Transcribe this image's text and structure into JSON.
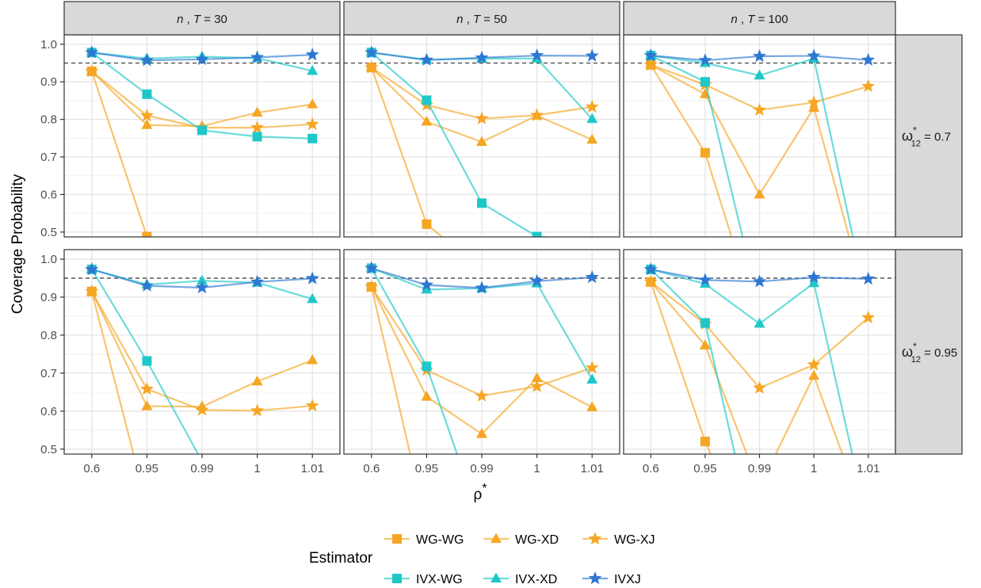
{
  "chart_data": {
    "type": "line",
    "ylabel": "Coverage Probability",
    "xlabel": "ρ*",
    "x_categories": [
      "0.6",
      "0.95",
      "0.99",
      "1",
      "1.01"
    ],
    "y_ticks": [
      "0.5",
      "0.6",
      "0.7",
      "0.8",
      "0.9",
      "1.0"
    ],
    "ylim": [
      0.487,
      1.025
    ],
    "reference_line": 0.95,
    "grid": true,
    "columns": [
      {
        "pre": "n",
        "mid": " , ",
        "var": "T",
        "post": " = 30"
      },
      {
        "pre": "n",
        "mid": " , ",
        "var": "T",
        "post": " = 50"
      },
      {
        "pre": "n",
        "mid": " , ",
        "var": "T",
        "post": " = 100"
      }
    ],
    "rows": [
      {
        "base": "ω",
        "sup": "*",
        "sub": "12",
        "value": " = 0.7"
      },
      {
        "base": "ω",
        "sup": "*",
        "sub": "12",
        "value": " = 0.95"
      }
    ],
    "legend": {
      "title": "Estimator",
      "position": "bottom",
      "entries": [
        {
          "name": "WG-WG",
          "color": "#F5A623",
          "shape": "square"
        },
        {
          "name": "WG-XD",
          "color": "#F5A623",
          "shape": "triangle"
        },
        {
          "name": "WG-XJ",
          "color": "#F5A623",
          "shape": "star"
        },
        {
          "name": "IVX-WG",
          "color": "#1FC8C8",
          "shape": "square"
        },
        {
          "name": "IVX-XD",
          "color": "#1FC8C8",
          "shape": "triangle"
        },
        {
          "name": "IVXJ",
          "color": "#2E78D2",
          "shape": "star"
        }
      ]
    },
    "panels": [
      {
        "row": 0,
        "col": 0,
        "series": {
          "WG-WG": [
            0.928,
            0.488,
            null,
            null,
            null
          ],
          "WG-XD": [
            0.928,
            0.785,
            0.782,
            0.818,
            0.84
          ],
          "WG-XJ": [
            0.928,
            0.81,
            0.778,
            0.778,
            0.787
          ],
          "IVX-WG": [
            0.978,
            0.867,
            0.771,
            0.754,
            0.749
          ],
          "IVX-XD": [
            0.978,
            0.962,
            0.967,
            0.963,
            0.929
          ],
          "IVXJ": [
            0.978,
            0.957,
            0.96,
            0.965,
            0.972
          ]
        }
      },
      {
        "row": 0,
        "col": 1,
        "series": {
          "WG-WG": [
            0.938,
            0.521,
            0.4,
            null,
            null
          ],
          "WG-XD": [
            0.938,
            0.794,
            0.74,
            0.81,
            0.746
          ],
          "WG-XJ": [
            0.938,
            0.838,
            0.802,
            0.811,
            0.833
          ],
          "IVX-WG": [
            0.978,
            0.851,
            0.577,
            0.488,
            0.477
          ],
          "IVX-XD": [
            0.978,
            0.959,
            0.962,
            0.962,
            0.801
          ],
          "IVXJ": [
            0.978,
            0.958,
            0.964,
            0.97,
            0.969
          ]
        }
      },
      {
        "row": 0,
        "col": 2,
        "series": {
          "WG-WG": [
            0.945,
            0.711,
            0.25,
            null,
            null
          ],
          "WG-XD": [
            0.945,
            0.867,
            0.6,
            0.831,
            0.3
          ],
          "WG-XJ": [
            0.945,
            0.892,
            0.825,
            0.845,
            0.888
          ],
          "IVX-WG": [
            0.97,
            0.9,
            0.3,
            null,
            null
          ],
          "IVX-XD": [
            0.97,
            0.95,
            0.917,
            0.962,
            0.3
          ],
          "IVXJ": [
            0.97,
            0.957,
            0.968,
            0.969,
            0.958
          ]
        }
      },
      {
        "row": 1,
        "col": 0,
        "series": {
          "WG-WG": [
            0.915,
            0.35,
            null,
            null,
            null
          ],
          "WG-XD": [
            0.915,
            0.613,
            0.612,
            0.678,
            0.734
          ],
          "WG-XJ": [
            0.915,
            0.658,
            0.603,
            0.601,
            0.614
          ],
          "IVX-WG": [
            0.973,
            0.732,
            0.468,
            null,
            null
          ],
          "IVX-XD": [
            0.973,
            0.933,
            0.943,
            0.938,
            0.895
          ],
          "IVXJ": [
            0.973,
            0.93,
            0.925,
            0.94,
            0.949
          ]
        }
      },
      {
        "row": 1,
        "col": 1,
        "series": {
          "WG-WG": [
            0.927,
            0.3,
            null,
            null,
            null
          ],
          "WG-XD": [
            0.927,
            0.638,
            0.54,
            0.687,
            0.61
          ],
          "WG-XJ": [
            0.927,
            0.708,
            0.64,
            0.665,
            0.714
          ],
          "IVX-WG": [
            0.976,
            0.718,
            0.3,
            null,
            null
          ],
          "IVX-XD": [
            0.976,
            0.92,
            0.923,
            0.936,
            0.683
          ],
          "IVXJ": [
            0.976,
            0.932,
            0.924,
            0.942,
            0.952
          ]
        }
      },
      {
        "row": 1,
        "col": 2,
        "series": {
          "WG-WG": [
            0.94,
            0.52,
            0.2,
            null,
            null
          ],
          "WG-XD": [
            0.94,
            0.773,
            0.4,
            0.693,
            0.3
          ],
          "WG-XJ": [
            0.94,
            0.829,
            0.661,
            0.722,
            0.846
          ],
          "IVX-WG": [
            0.973,
            0.832,
            0.2,
            null,
            null
          ],
          "IVX-XD": [
            0.973,
            0.935,
            0.83,
            0.937,
            0.3
          ],
          "IVXJ": [
            0.973,
            0.945,
            0.941,
            0.952,
            0.948
          ]
        }
      }
    ]
  }
}
